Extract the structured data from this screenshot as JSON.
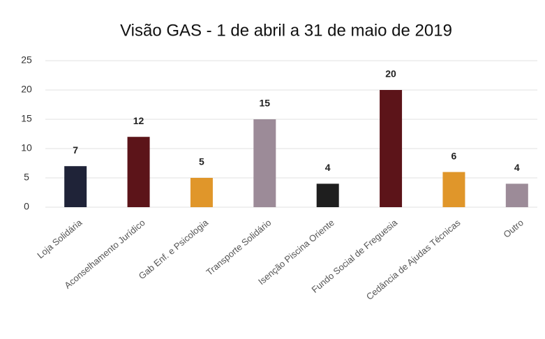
{
  "chart_data": {
    "type": "bar",
    "title": "Visão GAS - 1 de abril a 31 de maio de 2019",
    "categories": [
      "Loja Solidária",
      "Aconselhamento Jurídico",
      "Gab Enf. e Psicologia",
      "Transporte Solidário",
      "Isenção Piscina Oriente",
      "Fundo Social de Freguesia",
      "Cedância de Ajudas Técnicas",
      "Outro"
    ],
    "values": [
      7,
      12,
      5,
      15,
      4,
      20,
      6,
      4
    ],
    "colors": [
      "#1f2338",
      "#5c1419",
      "#e0962a",
      "#9c8b98",
      "#1e1e1e",
      "#5c1419",
      "#e0962a",
      "#9c8b98"
    ],
    "ylim": [
      0,
      25
    ],
    "yticks": [
      0,
      5,
      10,
      15,
      20,
      25
    ],
    "grid": true
  }
}
